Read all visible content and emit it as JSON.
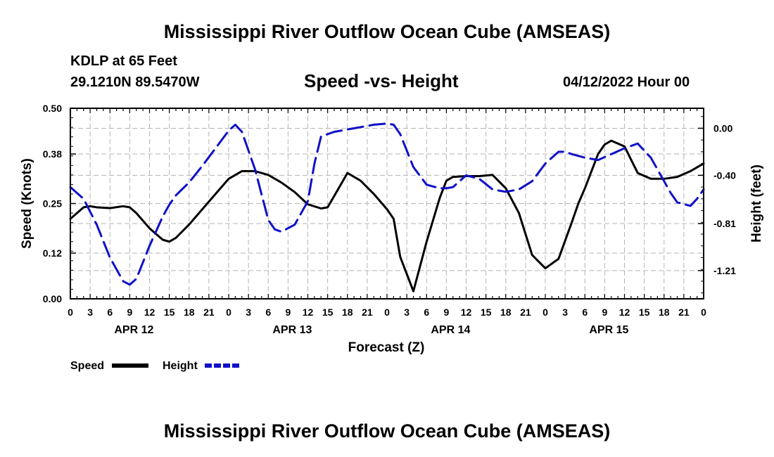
{
  "header": {
    "title": "Mississippi River Outflow Ocean Cube (AMSEAS)",
    "station": "KDLP at 65 Feet",
    "coords": "29.1210N  89.5470W",
    "subtitle": "Speed -vs- Height",
    "datetime": "04/12/2022 Hour 00"
  },
  "footer": {
    "title": "Mississippi River Outflow Ocean Cube (AMSEAS)"
  },
  "chart_data": {
    "type": "line",
    "xlabel": "Forecast (Z)",
    "ylabel": "Speed (Knots)",
    "y2label": "Height (feet)",
    "x_range": [
      0,
      96
    ],
    "ylim": [
      0,
      0.5
    ],
    "y2lim": [
      -1.45,
      0.17
    ],
    "y_ticks": [
      "0.00",
      "0.12",
      "0.25",
      "0.38",
      "0.50"
    ],
    "y2_ticks": [
      "-1.21",
      "-0.81",
      "-0.40",
      "0.00"
    ],
    "y2_tick_values": [
      -1.21,
      -0.81,
      -0.4,
      0.0
    ],
    "x_tick_labels": [
      "0",
      "3",
      "6",
      "9",
      "12",
      "15",
      "18",
      "21",
      "0",
      "3",
      "6",
      "9",
      "12",
      "15",
      "18",
      "21",
      "0",
      "3",
      "6",
      "9",
      "12",
      "15",
      "18",
      "21",
      "0",
      "3",
      "6",
      "9",
      "12",
      "15",
      "18",
      "21",
      "0"
    ],
    "date_labels": [
      {
        "text": "APR 12",
        "hour": 9
      },
      {
        "text": "APR 13",
        "hour": 33
      },
      {
        "text": "APR 14",
        "hour": 57
      },
      {
        "text": "APR 15",
        "hour": 81
      }
    ],
    "grid": true,
    "legend": [
      {
        "name": "Speed",
        "color": "#000000",
        "dashed": false
      },
      {
        "name": "Height",
        "color": "#1010c8",
        "dashed": true
      }
    ],
    "series": [
      {
        "name": "Speed",
        "axis": "left",
        "color": "#000000",
        "x": [
          0,
          2,
          3,
          4,
          6,
          8,
          9,
          10,
          12,
          14,
          15,
          16,
          18,
          20,
          22,
          24,
          26,
          28,
          30,
          32,
          34,
          36,
          38,
          39,
          40,
          42,
          44,
          46,
          48,
          49,
          50,
          52,
          54,
          56,
          57,
          58,
          60,
          62,
          64,
          66,
          68,
          69,
          70,
          72,
          74,
          76,
          77,
          78,
          80,
          81,
          82,
          84,
          86,
          88,
          90,
          92,
          94,
          96
        ],
        "values": [
          0.21,
          0.24,
          0.243,
          0.24,
          0.238,
          0.243,
          0.24,
          0.225,
          0.185,
          0.155,
          0.15,
          0.16,
          0.195,
          0.235,
          0.275,
          0.315,
          0.335,
          0.335,
          0.325,
          0.305,
          0.28,
          0.248,
          0.237,
          0.24,
          0.27,
          0.33,
          0.31,
          0.275,
          0.235,
          0.21,
          0.11,
          0.02,
          0.15,
          0.265,
          0.31,
          0.32,
          0.322,
          0.322,
          0.325,
          0.29,
          0.225,
          0.17,
          0.115,
          0.08,
          0.105,
          0.2,
          0.25,
          0.29,
          0.38,
          0.405,
          0.415,
          0.4,
          0.33,
          0.315,
          0.315,
          0.32,
          0.335,
          0.355
        ]
      },
      {
        "name": "Height",
        "axis": "right",
        "color": "#1010c8",
        "x": [
          0,
          2,
          4,
          6,
          8,
          9,
          10,
          12,
          14,
          15,
          16,
          18,
          20,
          22,
          24,
          25,
          26,
          28,
          30,
          31,
          32,
          34,
          36,
          37,
          38,
          40,
          42,
          44,
          46,
          48,
          49,
          50,
          52,
          54,
          56,
          57,
          58,
          60,
          62,
          64,
          66,
          68,
          70,
          72,
          74,
          75,
          76,
          78,
          80,
          82,
          84,
          86,
          88,
          90,
          91,
          92,
          94,
          95,
          96
        ],
        "values": [
          -0.5,
          -0.6,
          -0.82,
          -1.1,
          -1.3,
          -1.33,
          -1.28,
          -1.0,
          -0.75,
          -0.65,
          -0.57,
          -0.46,
          -0.32,
          -0.17,
          -0.02,
          0.03,
          -0.03,
          -0.35,
          -0.78,
          -0.86,
          -0.88,
          -0.82,
          -0.62,
          -0.3,
          -0.07,
          -0.03,
          -0.01,
          0.01,
          0.03,
          0.04,
          0.03,
          -0.05,
          -0.33,
          -0.48,
          -0.51,
          -0.51,
          -0.5,
          -0.4,
          -0.43,
          -0.52,
          -0.54,
          -0.52,
          -0.45,
          -0.3,
          -0.2,
          -0.2,
          -0.22,
          -0.25,
          -0.27,
          -0.22,
          -0.17,
          -0.13,
          -0.25,
          -0.45,
          -0.55,
          -0.63,
          -0.66,
          -0.6,
          -0.52
        ]
      }
    ]
  }
}
